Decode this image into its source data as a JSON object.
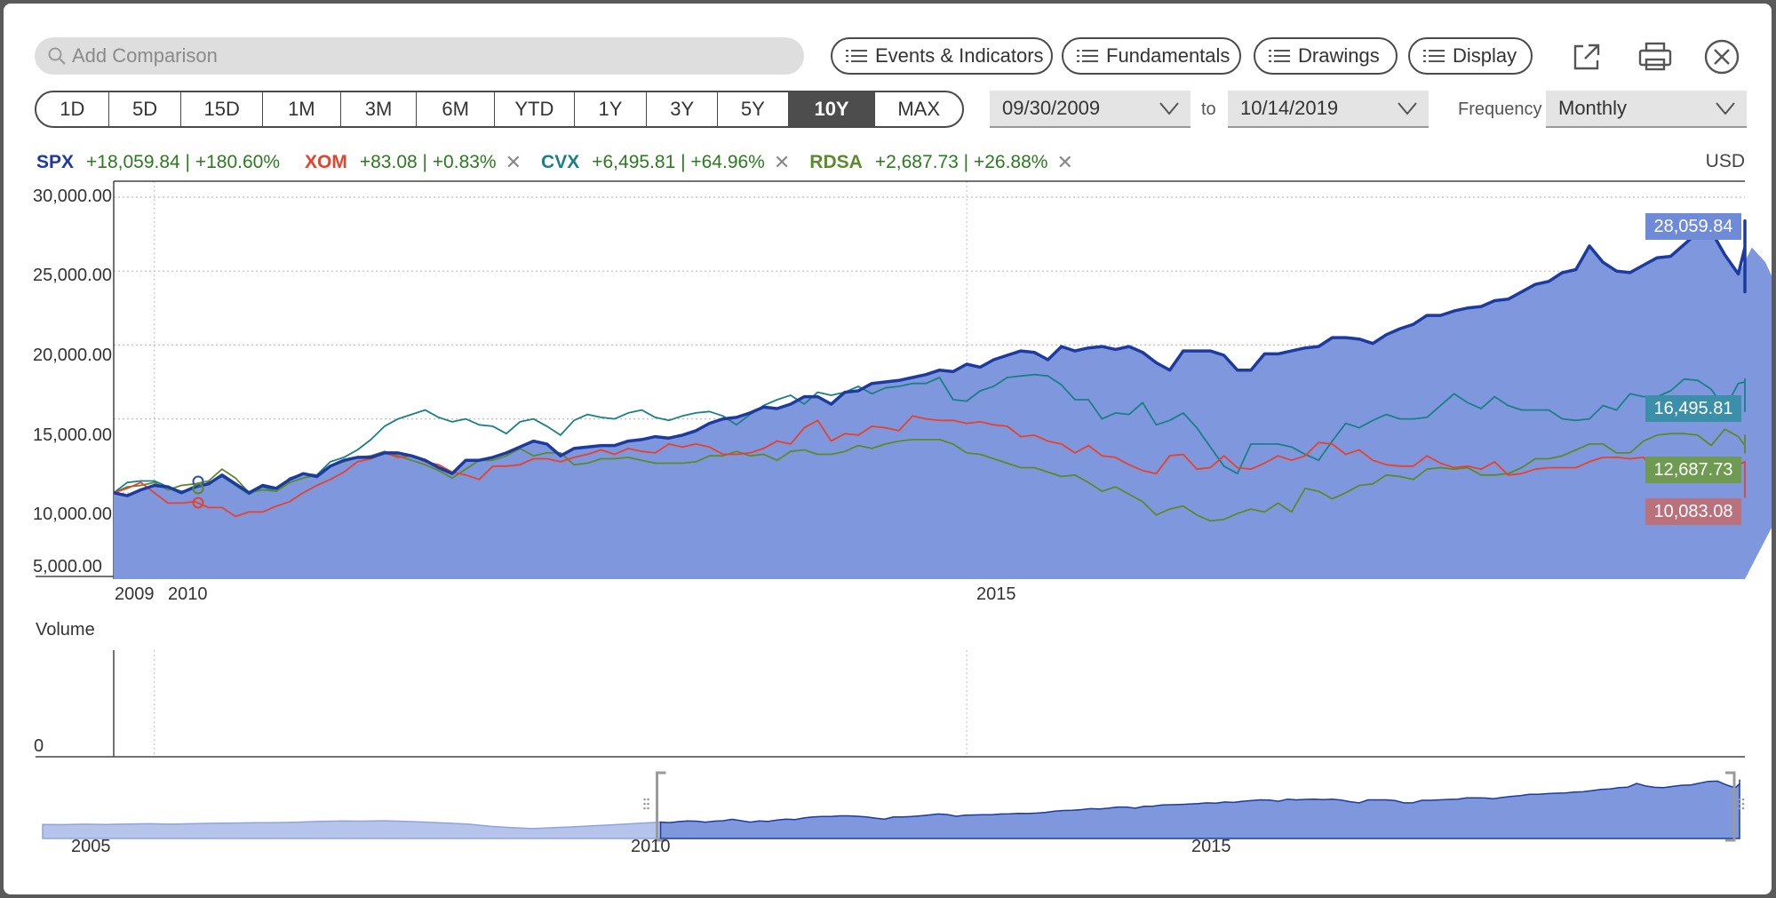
{
  "search": {
    "placeholder": "Add Comparison"
  },
  "toolbar": {
    "events_label": "Events & Indicators",
    "fundamentals_label": "Fundamentals",
    "drawings_label": "Drawings",
    "display_label": "Display"
  },
  "ranges": [
    "1D",
    "5D",
    "15D",
    "1M",
    "3M",
    "6M",
    "YTD",
    "1Y",
    "3Y",
    "5Y",
    "10Y",
    "MAX"
  ],
  "active_range": "10Y",
  "date_from": "09/30/2009",
  "date_to_label": "to",
  "date_to": "10/14/2019",
  "frequency_label": "Frequency",
  "frequency_value": "Monthly",
  "currency": "USD",
  "legend": [
    {
      "symbol": "SPX",
      "change": "+18,059.84 | +180.60%",
      "removable": false,
      "color": "#1c3aa0"
    },
    {
      "symbol": "XOM",
      "change": "+83.08 | +0.83%",
      "removable": true,
      "color": "#e8412c"
    },
    {
      "symbol": "CVX",
      "change": "+6,495.81 | +64.96%",
      "removable": true,
      "color": "#1a7f86"
    },
    {
      "symbol": "RDSA",
      "change": "+2,687.73 | +26.88%",
      "removable": true,
      "color": "#5b8a2b"
    }
  ],
  "colors": {
    "change_positive": "#2a7a1e",
    "remove_x": "#888888"
  },
  "end_labels": {
    "SPX": "28,059.84",
    "CVX": "16,495.81",
    "RDSA": "12,687.73",
    "XOM": "10,083.08"
  },
  "volume_title": "Volume",
  "volume_zero": "0",
  "chart_data": {
    "type": "line",
    "yticks": [
      "30,000.00",
      "25,000.00",
      "20,000.00",
      "15,000.00",
      "10,000.00",
      "5,000.00"
    ],
    "ylim": [
      5000,
      30000
    ],
    "xticks": [
      "2009",
      "2010",
      "2015"
    ],
    "xlim": [
      2009.75,
      2019.79
    ],
    "series": [
      {
        "name": "SPX",
        "area": true,
        "x0": 2009.75,
        "dx": 0.08333,
        "values": [
          10000,
          9800,
          10200,
          10500,
          10400,
          10000,
          10400,
          10600,
          11200,
          10600,
          10000,
          10500,
          10300,
          10900,
          11300,
          11100,
          11800,
          12200,
          12400,
          12400,
          12700,
          12700,
          12500,
          12200,
          11700,
          11300,
          12200,
          12200,
          12400,
          12700,
          13100,
          13500,
          13300,
          12500,
          13000,
          13100,
          13200,
          13200,
          13500,
          13600,
          13800,
          13700,
          13900,
          14200,
          14700,
          15000,
          15100,
          15400,
          15800,
          15700,
          16000,
          16500,
          16500,
          16000,
          16800,
          16900,
          17400,
          17500,
          17600,
          17800,
          18000,
          18300,
          18200,
          18700,
          18500,
          19000,
          19300,
          19600,
          19500,
          19000,
          19900,
          19600,
          19800,
          19900,
          19700,
          19900,
          19500,
          18800,
          18300,
          19600,
          19600,
          19600,
          19300,
          18300,
          18300,
          19400,
          19400,
          19600,
          19800,
          19900,
          20500,
          20500,
          20400,
          20100,
          20700,
          21100,
          21400,
          22000,
          22000,
          22300,
          22500,
          22600,
          23000,
          23100,
          23600,
          24100,
          24300,
          24900,
          25100,
          26700,
          25600,
          25000,
          24900,
          25400,
          25900,
          26000,
          26800,
          27600,
          27700,
          26100,
          24800,
          26600,
          25600,
          23600,
          25500,
          26300,
          26700,
          27100,
          28000,
          27700,
          28300,
          28100,
          28400,
          28100,
          28060
        ]
      },
      {
        "name": "CVX",
        "area": false,
        "x0": 2009.75,
        "dx": 0.08333,
        "values": [
          10000,
          10700,
          10800,
          10800,
          10400,
          10100,
          10300,
          10700,
          11100,
          10500,
          9900,
          10400,
          10100,
          11000,
          11300,
          11200,
          12100,
          12400,
          12900,
          13600,
          14500,
          15000,
          15300,
          15600,
          15100,
          14800,
          15000,
          14600,
          14500,
          14000,
          14800,
          15000,
          14500,
          13900,
          14900,
          15300,
          15100,
          15000,
          15400,
          15600,
          15100,
          14900,
          15200,
          15400,
          15500,
          15200,
          14600,
          15300,
          15900,
          16300,
          16600,
          16000,
          16800,
          16600,
          16800,
          17200,
          16700,
          17100,
          17200,
          17400,
          17400,
          17800,
          16300,
          16200,
          16900,
          17200,
          17800,
          17900,
          18000,
          17900,
          17300,
          16300,
          16300,
          15000,
          15400,
          15300,
          16100,
          14600,
          14900,
          15400,
          14400,
          13100,
          11800,
          11300,
          13300,
          13300,
          13300,
          13100,
          12600,
          12200,
          13500,
          14700,
          14400,
          14900,
          15300,
          15000,
          15000,
          15100,
          15900,
          16700,
          16100,
          15700,
          16500,
          15900,
          15600,
          15600,
          15600,
          15000,
          14900,
          15000,
          15900,
          15600,
          16700,
          16500,
          16500,
          16900,
          17700,
          17600,
          17000,
          15700,
          17400,
          17500,
          17500,
          17700,
          17500,
          16300,
          15500,
          16300,
          16800,
          17200,
          17200,
          16900,
          16800,
          16500,
          16500
        ]
      },
      {
        "name": "RDSA",
        "area": false,
        "x0": 2009.75,
        "dx": 0.08333,
        "values": [
          10000,
          10400,
          10500,
          10700,
          10200,
          10500,
          10600,
          10800,
          11600,
          11000,
          10000,
          10200,
          10100,
          10700,
          11000,
          11200,
          11800,
          12100,
          12400,
          12500,
          12800,
          12500,
          12200,
          11900,
          11500,
          11000,
          11600,
          12200,
          12200,
          12500,
          13000,
          12500,
          12700,
          12700,
          11900,
          12000,
          12300,
          12300,
          12400,
          12200,
          12000,
          12000,
          12000,
          12100,
          12500,
          12500,
          12800,
          12500,
          12600,
          12200,
          12800,
          12900,
          12600,
          12600,
          12800,
          13200,
          13000,
          13300,
          13500,
          13600,
          13600,
          13600,
          13300,
          12700,
          12600,
          12300,
          12000,
          11700,
          11700,
          11400,
          11100,
          11200,
          10700,
          10100,
          10400,
          9900,
          9400,
          8500,
          8900,
          9100,
          8500,
          8100,
          8200,
          8600,
          8900,
          8700,
          9300,
          8700,
          10300,
          10100,
          9600,
          10000,
          10500,
          10600,
          11200,
          11100,
          10900,
          11600,
          11700,
          11600,
          11700,
          11200,
          11200,
          11300,
          11700,
          12300,
          12300,
          12500,
          12900,
          13300,
          13300,
          12700,
          12700,
          13500,
          13900,
          14000,
          14000,
          13900,
          13200,
          14300,
          13800,
          13200,
          12900,
          13000,
          13000,
          13200,
          13400,
          13400,
          13500,
          13900,
          13900,
          12700,
          12700,
          13100,
          12690
        ]
      },
      {
        "name": "XOM",
        "area": false,
        "x0": 2009.75,
        "dx": 0.08333,
        "values": [
          10000,
          10300,
          10700,
          10000,
          9300,
          9300,
          9400,
          9000,
          9000,
          8400,
          8700,
          8700,
          9100,
          9400,
          10000,
          10500,
          10900,
          11400,
          12100,
          12300,
          12700,
          12400,
          12500,
          12100,
          11900,
          11400,
          11200,
          10900,
          11800,
          11800,
          11900,
          12300,
          12300,
          12100,
          12400,
          12600,
          12900,
          12600,
          13000,
          12800,
          12700,
          13300,
          13100,
          13300,
          13100,
          12600,
          12600,
          12700,
          13000,
          13500,
          13300,
          14400,
          14900,
          13500,
          14000,
          13900,
          14500,
          14400,
          14200,
          15200,
          15000,
          14900,
          14900,
          14700,
          14800,
          14600,
          14500,
          13800,
          13900,
          13500,
          13300,
          12700,
          13200,
          12500,
          12400,
          11900,
          11500,
          11300,
          12500,
          12600,
          11600,
          11700,
          12500,
          11700,
          11600,
          12000,
          12500,
          12200,
          12500,
          13400,
          13300,
          12600,
          12900,
          12200,
          11900,
          11800,
          11800,
          12500,
          12000,
          11700,
          11800,
          11600,
          12100,
          11200,
          11300,
          11600,
          11700,
          11700,
          11700,
          12100,
          12400,
          12400,
          12300,
          12400,
          11300,
          11100,
          11500,
          11800,
          11800,
          11500,
          11900,
          12100,
          11100,
          9700,
          10500,
          10900,
          11200,
          11200,
          11500,
          12000,
          11400,
          11100,
          10200,
          10400,
          10083
        ]
      }
    ],
    "legend_position": "top-left"
  },
  "navigator": {
    "tick_labels": [
      "2005",
      "2010",
      "2015"
    ]
  }
}
